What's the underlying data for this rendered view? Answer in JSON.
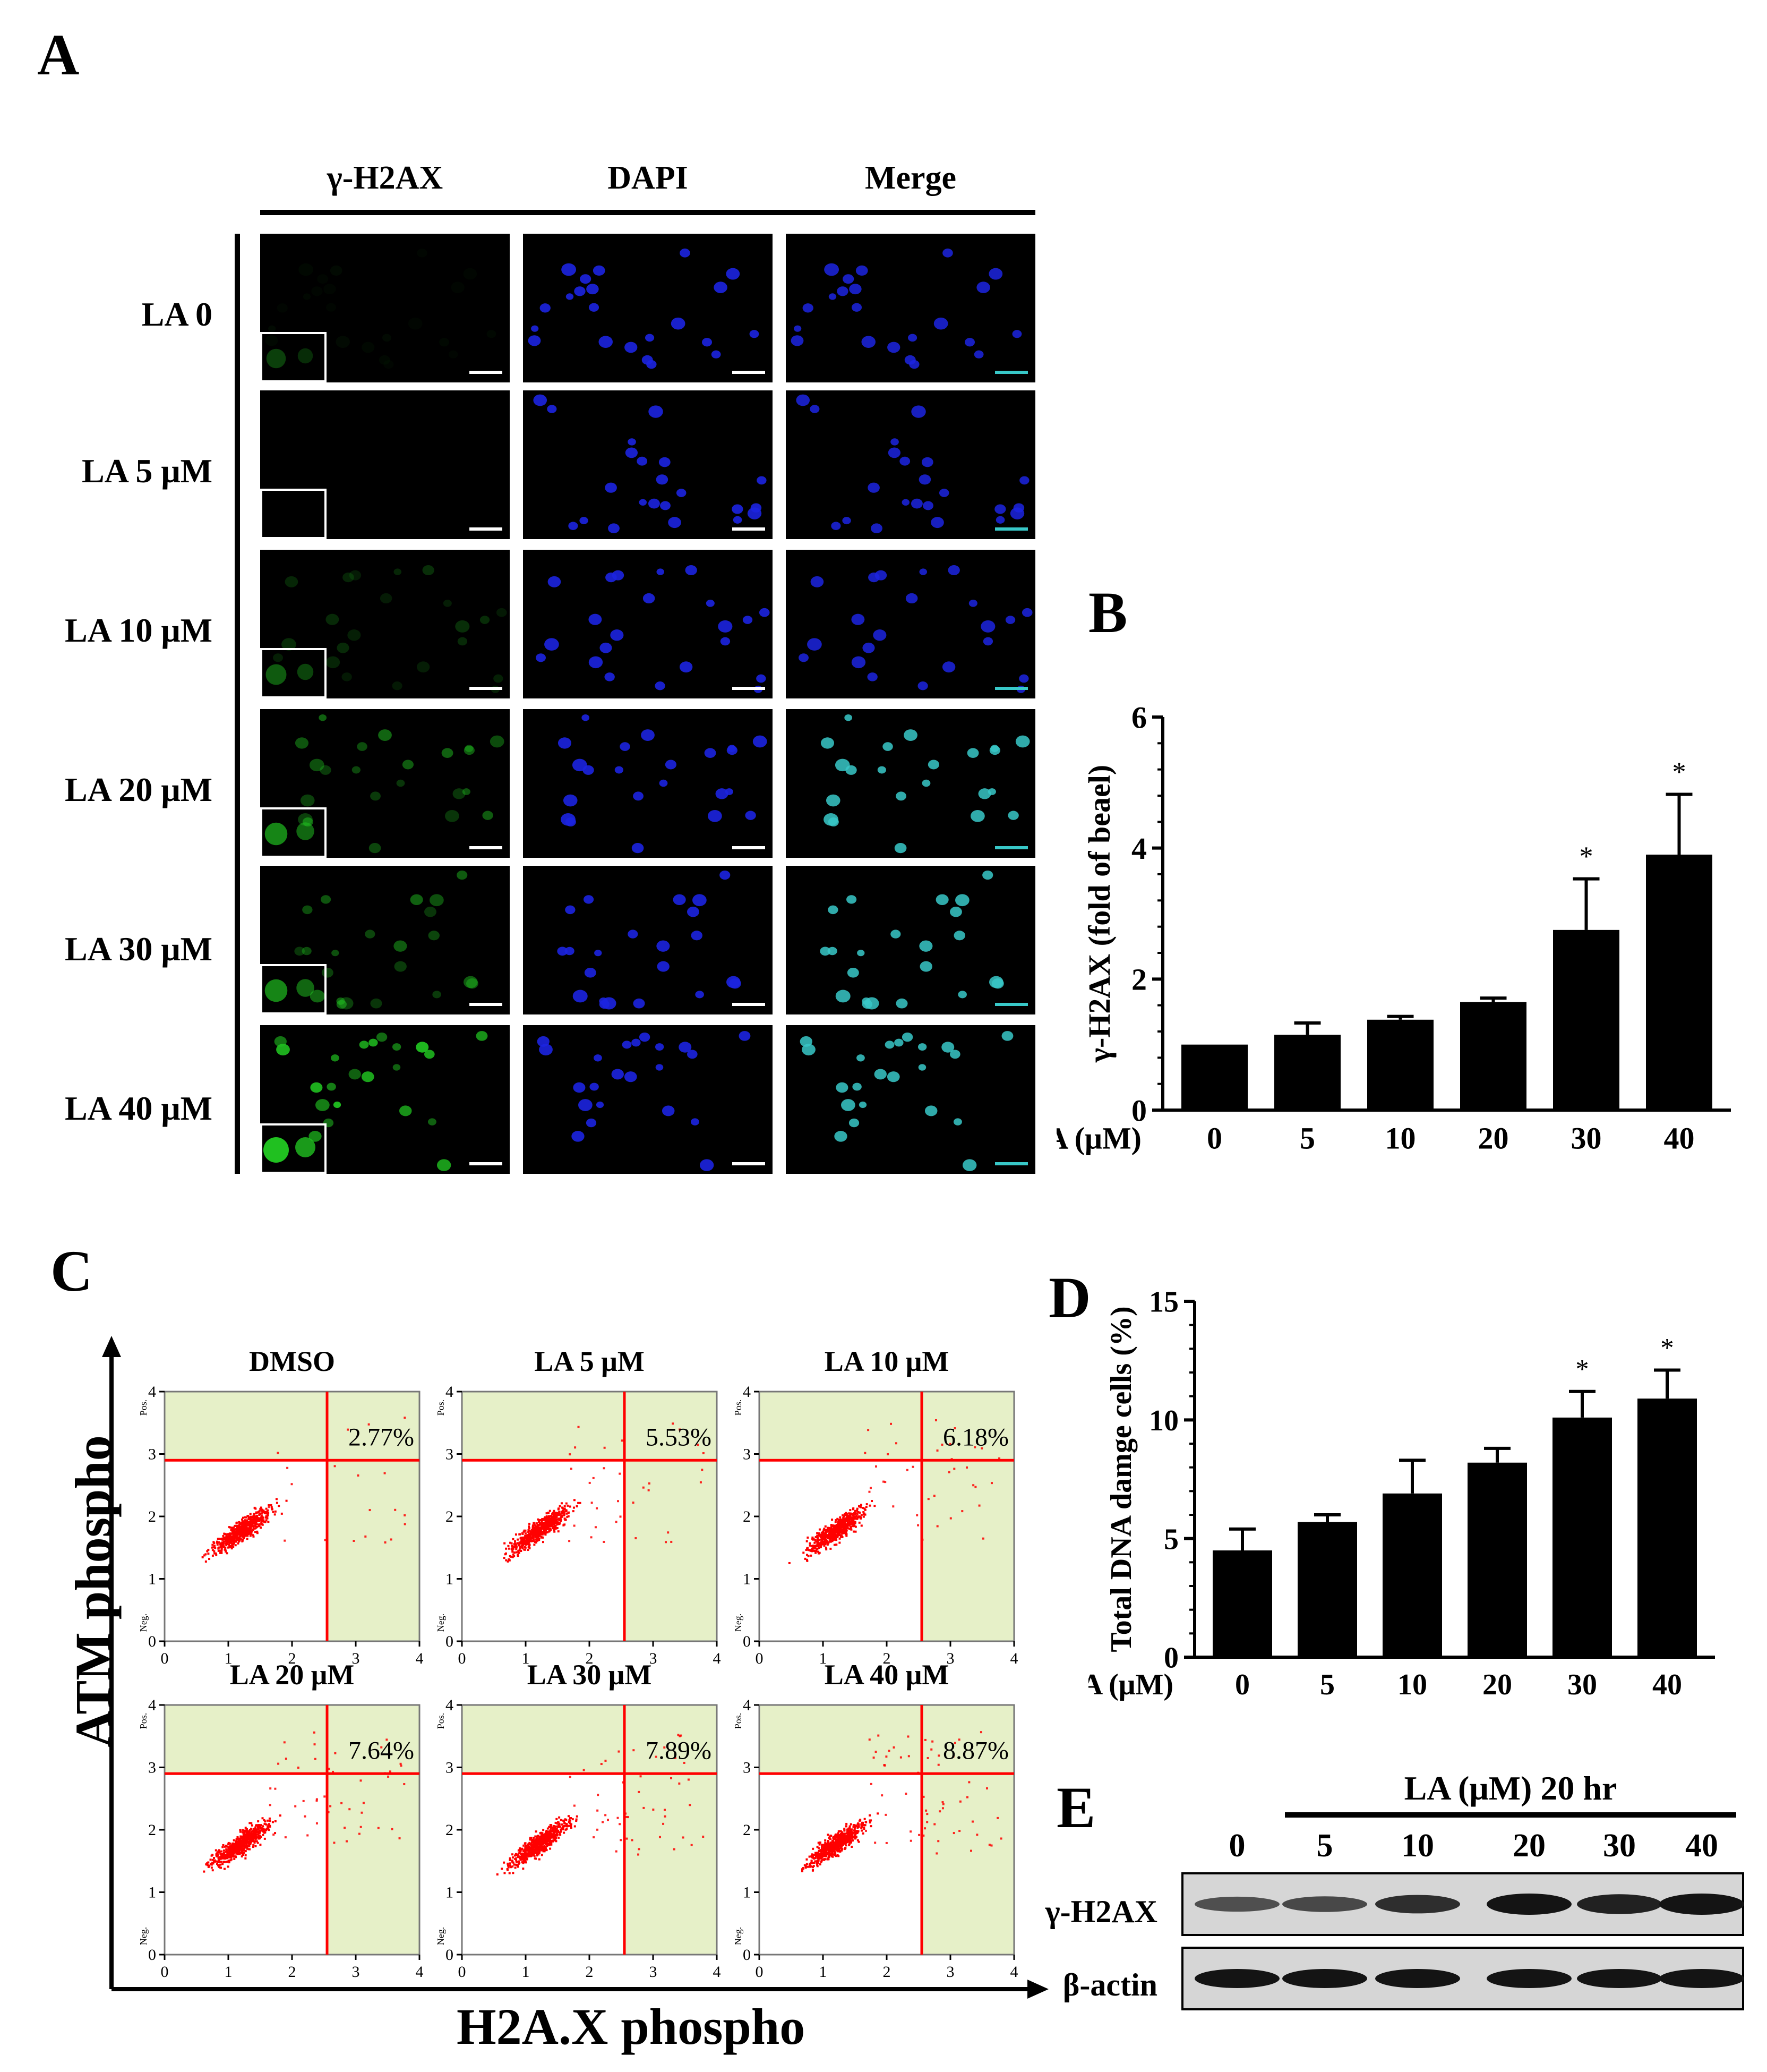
{
  "panels": {
    "A": "A",
    "B": "B",
    "C": "C",
    "D": "D",
    "E": "E"
  },
  "panelA": {
    "columns": [
      "γ-H2AX",
      "DAPI",
      "Merge"
    ],
    "rows": [
      "LA 0",
      "LA 5 μM",
      "LA 10 μM",
      "LA 20 μM",
      "LA 30 μM",
      "LA 40 μM"
    ],
    "green_intensity": [
      0.05,
      0.0,
      0.25,
      0.55,
      0.55,
      1.0
    ]
  },
  "chart_data": [
    {
      "id": "B",
      "type": "bar",
      "xlabel": "LA (μM)",
      "ylabel": "γ-H2AX (fold of beael)",
      "categories": [
        "0",
        "5",
        "10",
        "20",
        "30",
        "40"
      ],
      "values": [
        1.0,
        1.15,
        1.38,
        1.65,
        2.75,
        3.9
      ],
      "errors": [
        0,
        0.18,
        0.05,
        0.06,
        0.78,
        0.92
      ],
      "significance": [
        "",
        "",
        "",
        "",
        "*",
        "*"
      ],
      "ylim": [
        0,
        6
      ],
      "yticks": [
        "0",
        "2",
        "4",
        "6"
      ]
    },
    {
      "id": "D",
      "type": "bar",
      "xlabel": "LA (μM)",
      "ylabel": "Total DNA damge cells (%)",
      "categories": [
        "0",
        "5",
        "10",
        "20",
        "30",
        "40"
      ],
      "values": [
        4.5,
        5.7,
        6.9,
        8.2,
        10.1,
        10.9
      ],
      "errors": [
        0.9,
        0.3,
        1.4,
        0.6,
        1.1,
        1.2
      ],
      "significance": [
        "",
        "",
        "",
        "",
        "*",
        "*"
      ],
      "ylim": [
        0,
        15
      ],
      "yticks": [
        "0",
        "5",
        "10",
        "15"
      ]
    },
    {
      "id": "C",
      "type": "scatter",
      "xlabel": "H2A.X phospho",
      "ylabel": "ATM phospho",
      "xticks": [
        "0",
        "1",
        "2",
        "3",
        "4"
      ],
      "yticks": [
        "0",
        "1",
        "2",
        "3",
        "4"
      ],
      "pos_label": "Pos.",
      "neg_label": "Neg.",
      "plots": [
        {
          "title": "DMSO",
          "percent": "2.77%",
          "spread": 0.0
        },
        {
          "title": "LA 5 μM",
          "percent": "5.53%",
          "spread": 0.3
        },
        {
          "title": "LA 10 μM",
          "percent": "6.18%",
          "spread": 0.4
        },
        {
          "title": "LA 20 μM",
          "percent": "7.64%",
          "spread": 0.6
        },
        {
          "title": "LA 30 μM",
          "percent": "7.89%",
          "spread": 0.7
        },
        {
          "title": "LA 40 μM",
          "percent": "8.87%",
          "spread": 0.9
        }
      ]
    }
  ],
  "panelE": {
    "title": "LA  (μM) 20 hr",
    "lanes": [
      "0",
      "5",
      "10",
      "20",
      "30",
      "40"
    ],
    "rows": [
      {
        "label": "γ-H2AX",
        "intensities": [
          0.55,
          0.6,
          0.8,
          1.0,
          0.9,
          1.0
        ]
      },
      {
        "label": "β-actin",
        "intensities": [
          1,
          1,
          1,
          1,
          1,
          1
        ]
      }
    ]
  },
  "colors": {
    "green": "#20c020",
    "blue": "#1c24e0",
    "cyan": "#38c8c8",
    "red": "#ff0000",
    "gate": "#e6f0c8"
  }
}
